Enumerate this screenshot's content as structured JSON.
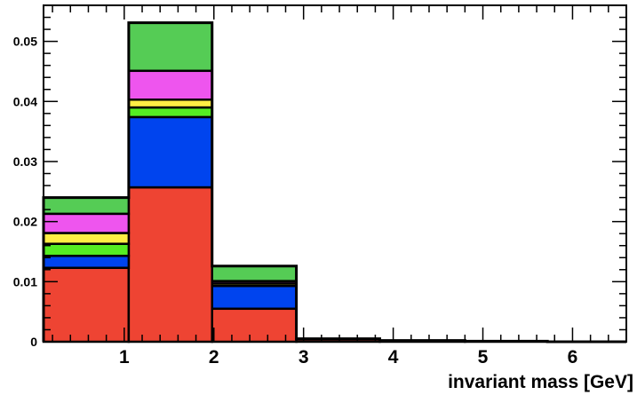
{
  "chart_data": {
    "type": "bar",
    "subtype": "stacked-histogram",
    "title": "",
    "xlabel": "invariant mass [GeV]",
    "ylabel": "",
    "xlim": [
      0.1,
      6.6
    ],
    "ylim": [
      0,
      0.056
    ],
    "grid": false,
    "legend": "none",
    "x_ticks": [
      1,
      2,
      3,
      4,
      5,
      6
    ],
    "y_ticks": [
      0,
      0.01,
      0.02,
      0.03,
      0.04,
      0.05
    ],
    "y_tick_labels": [
      "0",
      "0.01",
      "0.02",
      "0.03",
      "0.04",
      "0.05"
    ],
    "x_tick_labels": [
      "1",
      "2",
      "3",
      "4",
      "5",
      "6"
    ],
    "bin_edges": [
      0.1,
      1.05,
      1.98,
      2.92,
      3.85,
      4.8,
      5.72,
      6.6
    ],
    "series": [
      {
        "color": "#ee4433",
        "values": [
          0.0123,
          0.0257,
          0.0055,
          0.0004,
          0.0002,
          0.0001,
          0.0
        ]
      },
      {
        "color": "#0044ee",
        "values": [
          0.002,
          0.0117,
          0.0038,
          0.0,
          0.0,
          0.0,
          0.0
        ]
      },
      {
        "color": "#55ee22",
        "values": [
          0.002,
          0.0016,
          0.0,
          0.0,
          0.0,
          0.0,
          0.0
        ]
      },
      {
        "color": "#ffee44",
        "values": [
          0.0018,
          0.0013,
          0.0004,
          0.0,
          0.0,
          0.0,
          0.0
        ]
      },
      {
        "color": "#ee55ee",
        "values": [
          0.0032,
          0.0048,
          0.0004,
          0.0,
          0.0,
          0.0,
          0.0
        ]
      },
      {
        "color": "#55cc55",
        "values": [
          0.0027,
          0.008,
          0.0025,
          0.0001,
          0.0,
          0.0,
          0.0
        ]
      }
    ]
  }
}
